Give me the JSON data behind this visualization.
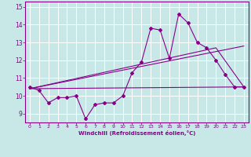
{
  "xlabel": "Windchill (Refroidissement éolien,°C)",
  "xlim": [
    -0.5,
    23.5
  ],
  "ylim": [
    8.5,
    15.3
  ],
  "yticks": [
    9,
    10,
    11,
    12,
    13,
    14,
    15
  ],
  "xticks": [
    0,
    1,
    2,
    3,
    4,
    5,
    6,
    7,
    8,
    9,
    10,
    11,
    12,
    13,
    14,
    15,
    16,
    17,
    18,
    19,
    20,
    21,
    22,
    23
  ],
  "bg_color": "#c8e8e8",
  "line_color": "#880088",
  "grid_color": "#ffffff",
  "main_data_x": [
    0,
    1,
    2,
    3,
    4,
    5,
    6,
    7,
    8,
    9,
    10,
    11,
    12,
    13,
    14,
    15,
    16,
    17,
    18,
    19,
    20,
    21,
    22,
    23
  ],
  "main_data_y": [
    10.5,
    10.3,
    9.6,
    9.9,
    9.9,
    10.0,
    8.7,
    9.5,
    9.6,
    9.6,
    10.0,
    11.3,
    11.9,
    13.8,
    13.7,
    12.1,
    14.6,
    14.1,
    13.0,
    12.7,
    12.0,
    11.2,
    10.5,
    10.5
  ],
  "trend1_x": [
    0,
    23
  ],
  "trend1_y": [
    10.4,
    10.5
  ],
  "trend2_x": [
    0,
    23
  ],
  "trend2_y": [
    10.4,
    12.8
  ],
  "trend3_x": [
    0,
    20,
    23
  ],
  "trend3_y": [
    10.4,
    12.7,
    10.5
  ]
}
